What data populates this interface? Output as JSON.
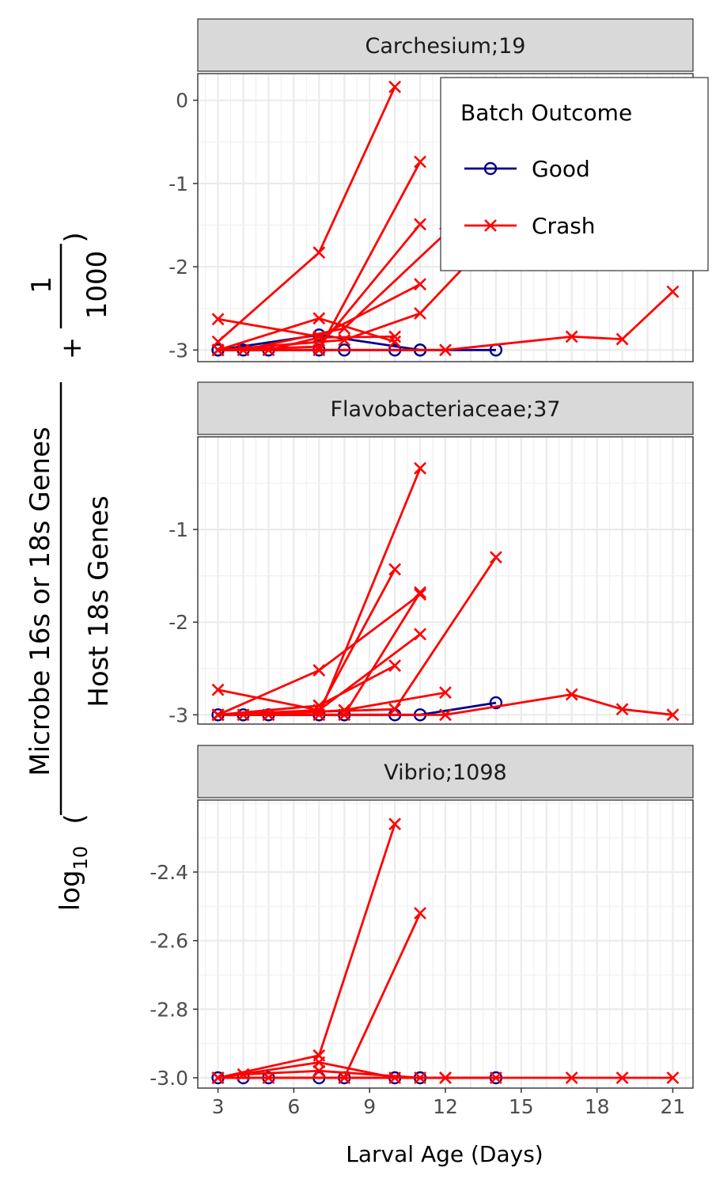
{
  "chart_data": {
    "type": "line",
    "xlabel": "Larval Age (Days)",
    "ylabel": {
      "prefix": "log",
      "subscript": "10",
      "numerator": "Microbe 16s or 18s Genes",
      "denominator": "Host 18s Genes",
      "plus": "+",
      "const_numerator": "1",
      "const_denominator": "1000"
    },
    "xlim": [
      2.2,
      21.8
    ],
    "x_ticks": [
      3,
      6,
      9,
      12,
      15,
      18,
      21
    ],
    "x_tick_labels": [
      "3",
      "6",
      "9",
      "12",
      "15",
      "18",
      "21"
    ],
    "grid": true,
    "legend": {
      "title": "Batch Outcome",
      "position": "top-right",
      "entries": [
        {
          "label": "Good",
          "color": "#00008b",
          "marker": "circle"
        },
        {
          "label": "Crash",
          "color": "#ff0000",
          "marker": "x"
        }
      ]
    },
    "colors": {
      "Good": "#00008b",
      "Crash": "#ff0000"
    },
    "panels": [
      {
        "title": "Carchesium;19",
        "ylim": [
          -3.14,
          0.32
        ],
        "y_ticks": [
          -3,
          -2,
          -1,
          0
        ],
        "y_tick_labels": [
          "-3",
          "-2",
          "-1",
          "0"
        ],
        "series": [
          {
            "outcome": "Good",
            "points": [
              [
                3,
                -3.0
              ],
              [
                4,
                -3.0
              ],
              [
                5,
                -3.0
              ],
              [
                7,
                -3.0
              ],
              [
                8,
                -3.0
              ],
              [
                10,
                -3.0
              ],
              [
                11,
                -3.0
              ],
              [
                14,
                -3.0
              ]
            ]
          },
          {
            "outcome": "Good",
            "points": [
              [
                3,
                -3.0
              ],
              [
                7,
                -2.82
              ],
              [
                11,
                -3.0
              ]
            ]
          },
          {
            "outcome": "Crash",
            "points": [
              [
                3,
                -2.9
              ],
              [
                7,
                -1.83
              ],
              [
                10,
                0.16
              ]
            ]
          },
          {
            "outcome": "Crash",
            "points": [
              [
                3,
                -3.0
              ],
              [
                7,
                -3.0
              ],
              [
                11,
                -0.74
              ]
            ]
          },
          {
            "outcome": "Crash",
            "points": [
              [
                3,
                -3.0
              ],
              [
                7,
                -2.96
              ],
              [
                11,
                -1.49
              ]
            ]
          },
          {
            "outcome": "Crash",
            "points": [
              [
                3,
                -2.63
              ],
              [
                7,
                -2.84
              ],
              [
                11,
                -2.21
              ]
            ]
          },
          {
            "outcome": "Crash",
            "points": [
              [
                3,
                -3.0
              ],
              [
                7,
                -2.62
              ],
              [
                10,
                -2.9
              ]
            ]
          },
          {
            "outcome": "Crash",
            "points": [
              [
                3,
                -3.0
              ],
              [
                8,
                -2.88
              ],
              [
                11,
                -2.56
              ],
              [
                14,
                -1.6
              ]
            ]
          },
          {
            "outcome": "Crash",
            "points": [
              [
                4,
                -3.0
              ],
              [
                8,
                -2.74
              ],
              [
                12,
                -1.6
              ]
            ]
          },
          {
            "outcome": "Crash",
            "points": [
              [
                5,
                -3.0
              ],
              [
                7,
                -2.85
              ],
              [
                10,
                -2.84
              ]
            ]
          },
          {
            "outcome": "Crash",
            "points": [
              [
                3,
                -3.0
              ],
              [
                12,
                -3.0
              ],
              [
                17,
                -2.84
              ],
              [
                19,
                -2.87
              ],
              [
                21,
                -2.3
              ]
            ]
          }
        ]
      },
      {
        "title": "Flavobacteriaceae;37",
        "ylim": [
          -3.1,
          -0.0
        ],
        "y_ticks": [
          -3,
          -2,
          -1
        ],
        "y_tick_labels": [
          "-3",
          "-2",
          "-1"
        ],
        "series": [
          {
            "outcome": "Good",
            "points": [
              [
                3,
                -3.0
              ],
              [
                4,
                -3.0
              ],
              [
                5,
                -3.0
              ],
              [
                7,
                -3.0
              ],
              [
                8,
                -3.0
              ],
              [
                10,
                -3.0
              ],
              [
                11,
                -3.0
              ],
              [
                14,
                -2.87
              ]
            ]
          },
          {
            "outcome": "Crash",
            "points": [
              [
                3,
                -3.0
              ],
              [
                7,
                -3.0
              ],
              [
                11,
                -0.34
              ]
            ]
          },
          {
            "outcome": "Crash",
            "points": [
              [
                3,
                -3.0
              ],
              [
                7,
                -2.95
              ],
              [
                10,
                -1.43
              ]
            ]
          },
          {
            "outcome": "Crash",
            "points": [
              [
                3,
                -3.0
              ],
              [
                7,
                -2.52
              ],
              [
                11,
                -1.7
              ]
            ]
          },
          {
            "outcome": "Crash",
            "points": [
              [
                3,
                -2.73
              ],
              [
                7,
                -2.95
              ],
              [
                11,
                -2.13
              ]
            ]
          },
          {
            "outcome": "Crash",
            "points": [
              [
                3,
                -3.0
              ],
              [
                7,
                -2.9
              ],
              [
                10,
                -2.47
              ]
            ]
          },
          {
            "outcome": "Crash",
            "points": [
              [
                4,
                -3.0
              ],
              [
                8,
                -3.0
              ],
              [
                11,
                -1.68
              ]
            ]
          },
          {
            "outcome": "Crash",
            "points": [
              [
                3,
                -3.0
              ],
              [
                10,
                -2.94
              ],
              [
                14,
                -1.3
              ]
            ]
          },
          {
            "outcome": "Crash",
            "points": [
              [
                5,
                -3.0
              ],
              [
                8,
                -2.95
              ],
              [
                12,
                -2.76
              ]
            ]
          },
          {
            "outcome": "Crash",
            "points": [
              [
                3,
                -3.0
              ],
              [
                12,
                -3.0
              ],
              [
                17,
                -2.78
              ],
              [
                19,
                -2.94
              ],
              [
                21,
                -3.0
              ]
            ]
          }
        ]
      },
      {
        "title": "Vibrio;1098",
        "ylim": [
          -3.03,
          -2.19
        ],
        "y_ticks": [
          -3.0,
          -2.8,
          -2.6,
          -2.4
        ],
        "y_tick_labels": [
          "-3.0",
          "-2.8",
          "-2.6",
          "-2.4"
        ],
        "series": [
          {
            "outcome": "Good",
            "points": [
              [
                3,
                -3.0
              ],
              [
                4,
                -3.0
              ],
              [
                5,
                -3.0
              ],
              [
                7,
                -3.0
              ],
              [
                8,
                -3.0
              ],
              [
                10,
                -3.0
              ],
              [
                11,
                -3.0
              ],
              [
                14,
                -3.0
              ]
            ]
          },
          {
            "outcome": "Crash",
            "points": [
              [
                3,
                -3.0
              ],
              [
                7,
                -2.935
              ],
              [
                10,
                -2.26
              ]
            ]
          },
          {
            "outcome": "Crash",
            "points": [
              [
                3,
                -3.0
              ],
              [
                8,
                -3.0
              ],
              [
                11,
                -2.52
              ]
            ]
          },
          {
            "outcome": "Crash",
            "points": [
              [
                3,
                -3.0
              ],
              [
                7,
                -2.955
              ],
              [
                10,
                -3.0
              ]
            ]
          },
          {
            "outcome": "Crash",
            "points": [
              [
                4,
                -2.99
              ],
              [
                7,
                -2.98
              ],
              [
                11,
                -3.0
              ]
            ]
          },
          {
            "outcome": "Crash",
            "points": [
              [
                5,
                -3.0
              ],
              [
                8,
                -3.0
              ],
              [
                12,
                -3.0
              ],
              [
                14,
                -3.0
              ]
            ]
          },
          {
            "outcome": "Crash",
            "points": [
              [
                3,
                -3.0
              ],
              [
                12,
                -3.0
              ],
              [
                17,
                -3.0
              ],
              [
                19,
                -3.0
              ],
              [
                21,
                -3.0
              ]
            ]
          }
        ]
      }
    ]
  }
}
